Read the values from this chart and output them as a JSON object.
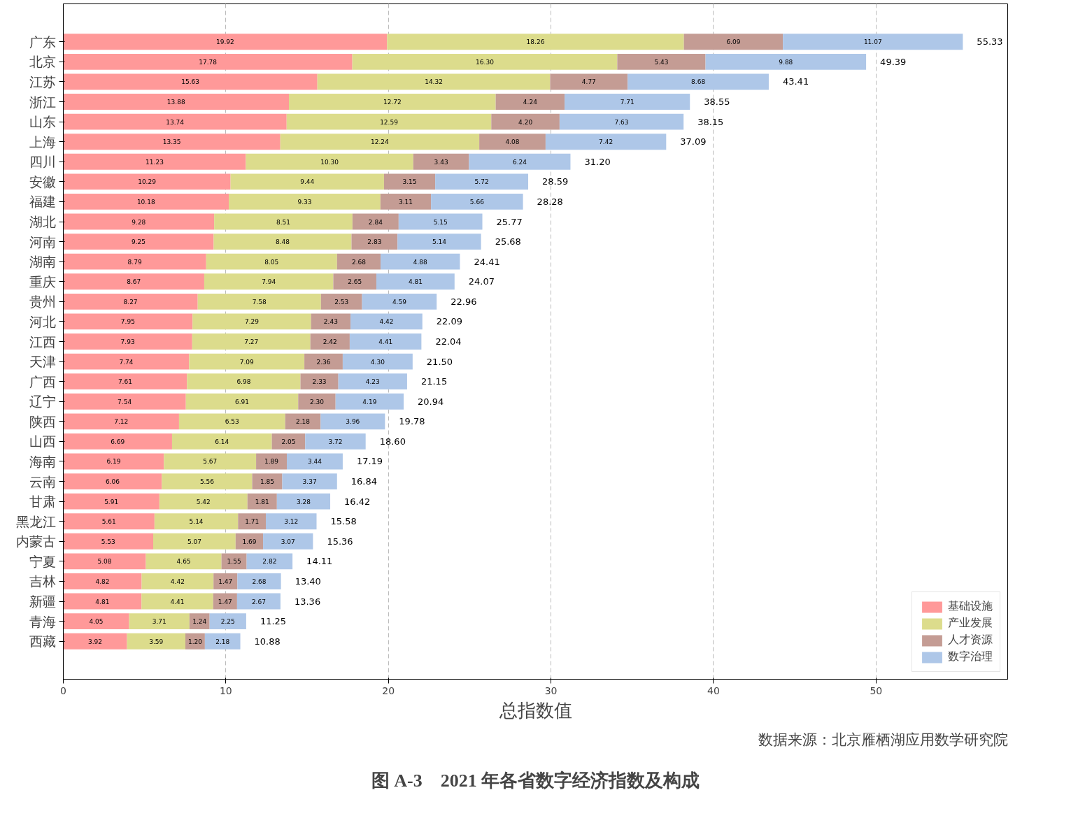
{
  "chart_data": {
    "type": "bar",
    "orientation": "horizontal",
    "stacked": true,
    "title": "图 A-3　2021 年各省数字经济指数及构成",
    "xlabel": "总指数值",
    "annotations": [
      "数据来源：北京雁栖湖应用数学研究院"
    ],
    "categories": [
      "广东",
      "北京",
      "江苏",
      "浙江",
      "山东",
      "上海",
      "四川",
      "安徽",
      "福建",
      "湖北",
      "河南",
      "湖南",
      "重庆",
      "贵州",
      "河北",
      "江西",
      "天津",
      "广西",
      "辽宁",
      "陕西",
      "山西",
      "海南",
      "云南",
      "甘肃",
      "黑龙江",
      "内蒙古",
      "宁夏",
      "吉林",
      "新疆",
      "青海",
      "西藏"
    ],
    "series": [
      {
        "name": "基础设施",
        "color": "#ff9999",
        "values": [
          19.92,
          17.78,
          15.63,
          13.88,
          13.74,
          13.35,
          11.23,
          10.29,
          10.18,
          9.28,
          9.25,
          8.79,
          8.67,
          8.27,
          7.95,
          7.93,
          7.74,
          7.61,
          7.54,
          7.12,
          6.69,
          6.19,
          6.06,
          5.91,
          5.61,
          5.53,
          5.08,
          4.82,
          4.81,
          4.05,
          3.92
        ],
        "value_labels": [
          "19.92",
          "17.78",
          "15.63",
          "13.88",
          "13.74",
          "13.35",
          "11.23",
          "10.29",
          "10.18",
          "9.28",
          "9.25",
          "8.79",
          "8.67",
          "8.27",
          "7.95",
          "7.93",
          "7.74",
          "7.61",
          "7.54",
          "7.12",
          "6.69",
          "6.19",
          "6.06",
          "5.91",
          "5.61",
          "5.53",
          "5.08",
          "4.82",
          "4.81",
          "4.05",
          "3.92"
        ]
      },
      {
        "name": "产业发展",
        "color": "#dcdc8c",
        "values": [
          18.26,
          16.3,
          14.32,
          12.72,
          12.59,
          12.24,
          10.3,
          9.44,
          9.33,
          8.51,
          8.48,
          8.05,
          7.94,
          7.58,
          7.29,
          7.27,
          7.09,
          6.98,
          6.91,
          6.53,
          6.14,
          5.67,
          5.56,
          5.42,
          5.14,
          5.07,
          4.65,
          4.42,
          4.41,
          3.71,
          3.59
        ],
        "value_labels": [
          "18.26",
          "16.30",
          "14.32",
          "12.72",
          "12.59",
          "12.24",
          "10.30",
          "9.44",
          "9.33",
          "8.51",
          "8.48",
          "8.05",
          "7.94",
          "7.58",
          "7.29",
          "7.27",
          "7.09",
          "6.98",
          "6.91",
          "6.53",
          "6.14",
          "5.67",
          "5.56",
          "5.42",
          "5.14",
          "5.07",
          "4.65",
          "4.42",
          "4.41",
          "3.71",
          "3.59"
        ]
      },
      {
        "name": "人才资源",
        "color": "#c49c94",
        "values": [
          6.09,
          5.43,
          4.77,
          4.24,
          4.2,
          4.08,
          3.43,
          3.15,
          3.11,
          2.84,
          2.83,
          2.68,
          2.65,
          2.53,
          2.43,
          2.42,
          2.36,
          2.33,
          2.3,
          2.18,
          2.05,
          1.89,
          1.85,
          1.81,
          1.71,
          1.69,
          1.55,
          1.47,
          1.47,
          1.24,
          1.2
        ],
        "value_labels": [
          "6.09",
          "5.43",
          "4.77",
          "4.24",
          "4.20",
          "4.08",
          "3.43",
          "3.15",
          "3.11",
          "2.84",
          "2.83",
          "2.68",
          "2.65",
          "2.53",
          "2.43",
          "2.42",
          "2.36",
          "2.33",
          "2.30",
          "2.18",
          "2.05",
          "1.89",
          "1.85",
          "1.81",
          "1.71",
          "1.69",
          "1.55",
          "1.47",
          "1.47",
          "1.24",
          "1.20"
        ]
      },
      {
        "name": "数字治理",
        "color": "#aec7e8",
        "values": [
          11.07,
          9.88,
          8.68,
          7.71,
          7.63,
          7.42,
          6.24,
          5.72,
          5.66,
          5.15,
          5.14,
          4.88,
          4.81,
          4.59,
          4.42,
          4.41,
          4.3,
          4.23,
          4.19,
          3.96,
          3.72,
          3.44,
          3.37,
          3.28,
          3.12,
          3.07,
          2.82,
          2.68,
          2.67,
          2.25,
          2.18
        ],
        "value_labels": [
          "11.07",
          "9.88",
          "8.68",
          "7.71",
          "7.63",
          "7.42",
          "6.24",
          "5.72",
          "5.66",
          "5.15",
          "5.14",
          "4.88",
          "4.81",
          "4.59",
          "4.42",
          "4.41",
          "4.30",
          "4.23",
          "4.19",
          "3.96",
          "3.72",
          "3.44",
          "3.37",
          "3.28",
          "3.12",
          "3.07",
          "2.82",
          "2.68",
          "2.67",
          "2.25",
          "2.18"
        ]
      }
    ],
    "totals": [
      "55.33",
      "49.39",
      "43.41",
      "38.55",
      "38.15",
      "37.09",
      "31.20",
      "28.59",
      "28.28",
      "25.77",
      "25.68",
      "24.41",
      "24.07",
      "22.96",
      "22.09",
      "22.04",
      "21.50",
      "21.15",
      "20.94",
      "19.78",
      "18.60",
      "17.19",
      "16.84",
      "16.42",
      "15.58",
      "15.36",
      "14.11",
      "13.40",
      "13.36",
      "11.25",
      "10.88"
    ],
    "xlim": [
      0,
      58.1
    ],
    "xticks": [
      0,
      10,
      20,
      30,
      40,
      50
    ],
    "grid": "x",
    "legend": "bottom right"
  }
}
